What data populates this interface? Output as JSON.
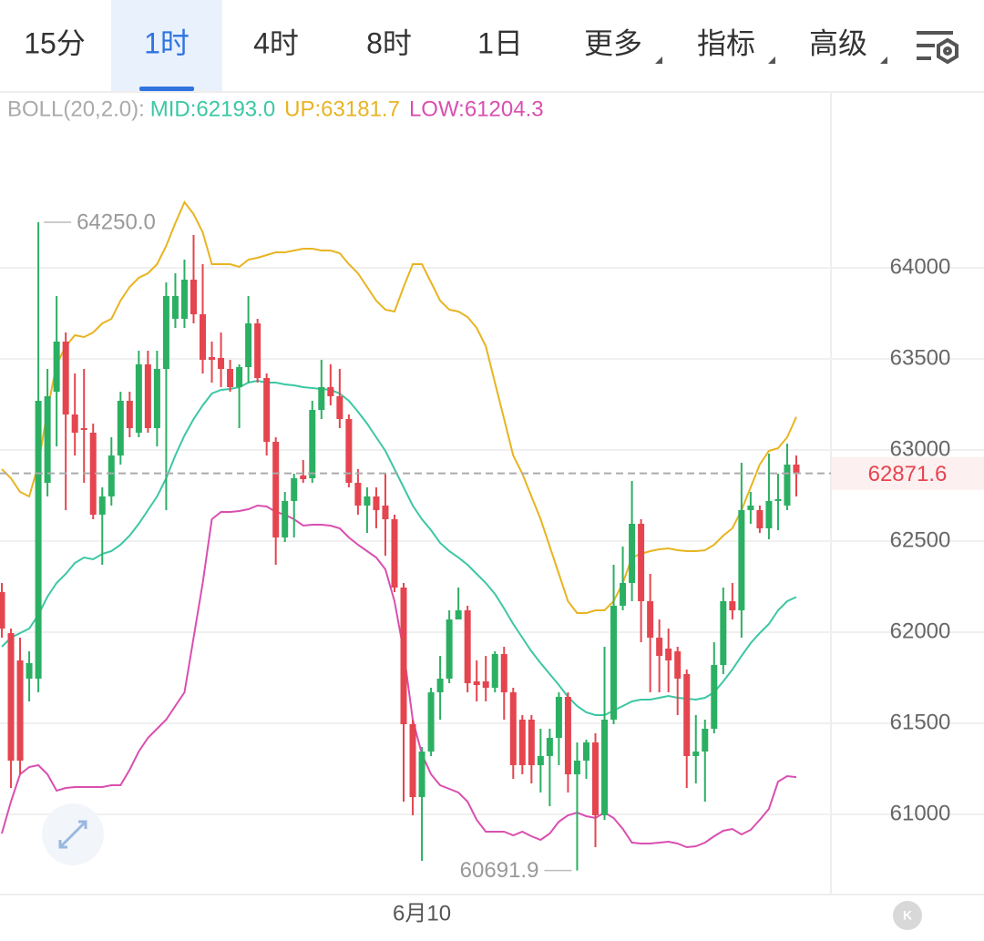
{
  "toolbar": {
    "tabs": [
      "15分",
      "1时",
      "4时",
      "8时",
      "1日",
      "更多",
      "指标",
      "高级"
    ],
    "active": 1
  },
  "chart_data": {
    "type": "candlestick",
    "indicator": "BOLL(20,2.0):",
    "categories": [
      null,
      null,
      null,
      null,
      null,
      null,
      null,
      null,
      null,
      null,
      null,
      null,
      null,
      null,
      null,
      null,
      null,
      null,
      null,
      null,
      null,
      null,
      null,
      null,
      null,
      null,
      null,
      null,
      null,
      null,
      null,
      null,
      null,
      null,
      null,
      null,
      null,
      null,
      null,
      null,
      null,
      null,
      null,
      null,
      null,
      null,
      "6月10",
      null,
      null,
      null,
      null,
      null,
      null,
      null,
      null,
      null,
      null,
      null,
      null,
      null,
      null,
      null,
      null,
      null,
      null,
      null,
      null,
      null,
      null,
      null,
      null,
      null,
      null,
      null,
      null,
      null,
      null,
      null,
      null,
      null,
      null,
      null,
      null,
      null,
      null,
      null,
      null,
      null
    ],
    "open": [
      62220,
      61995,
      61845,
      61745,
      61745,
      62820,
      63320,
      63595,
      63195,
      63120,
      63095,
      62645,
      62745,
      62970,
      63270,
      63095,
      63470,
      63120,
      63445,
      63720,
      63720,
      63935,
      63745,
      63510,
      63505,
      63445,
      63345,
      63455,
      63695,
      63395,
      63045,
      62520,
      62720,
      62860,
      62845,
      63220,
      63345,
      63295,
      63170,
      62820,
      62695,
      62745,
      62695,
      62620,
      62245,
      61495,
      61095,
      61345,
      61670,
      61745,
      62070,
      62120,
      61730,
      61730,
      61695,
      61880,
      61670,
      61520,
      61520,
      61270,
      61320,
      61420,
      61645,
      61220,
      61295,
      61395,
      60995,
      61520,
      62145,
      62270,
      62595,
      62170,
      61970,
      61910,
      61895,
      61770,
      61320,
      61345,
      61470,
      61820,
      62170,
      62120,
      62670,
      62670,
      62570,
      62720,
      62695,
      62920
    ],
    "high": [
      62270,
      62020,
      61970,
      61895,
      64250,
      63445,
      63845,
      63645,
      63420,
      63445,
      63145,
      62795,
      63070,
      63320,
      63320,
      63545,
      63545,
      63545,
      63920,
      63970,
      64045,
      64180,
      64020,
      63595,
      63645,
      63495,
      63470,
      63845,
      63720,
      63420,
      63070,
      62770,
      62870,
      62945,
      63270,
      63495,
      63470,
      63445,
      63195,
      62895,
      62795,
      62795,
      62870,
      62645,
      62270,
      61520,
      61370,
      61695,
      61870,
      62120,
      62245,
      62145,
      61845,
      61870,
      61895,
      61920,
      61695,
      61545,
      61545,
      61470,
      61470,
      61670,
      61670,
      61395,
      61410,
      61445,
      61920,
      62370,
      62470,
      62830,
      62620,
      62320,
      62070,
      62020,
      61920,
      61795,
      61545,
      61520,
      61945,
      62245,
      62270,
      62930,
      62770,
      62695,
      62980,
      62870,
      63035,
      62970
    ],
    "low": [
      61970,
      61145,
      61220,
      61620,
      61670,
      62745,
      63020,
      62670,
      62970,
      62820,
      62620,
      62370,
      62695,
      62920,
      63070,
      63070,
      63095,
      63020,
      62670,
      63670,
      63670,
      63695,
      63420,
      63370,
      63345,
      63320,
      63120,
      63370,
      63370,
      62970,
      62370,
      62495,
      62520,
      62820,
      62820,
      63170,
      63245,
      63120,
      62795,
      62645,
      62545,
      62570,
      62420,
      62220,
      61070,
      60995,
      60745,
      61320,
      61520,
      61720,
      62070,
      61670,
      61620,
      61620,
      61670,
      61520,
      61195,
      61220,
      61170,
      61120,
      61045,
      61270,
      61120,
      60691.9,
      61195,
      60820,
      60970,
      61495,
      62120,
      62170,
      61945,
      61670,
      61670,
      61670,
      61545,
      61145,
      61170,
      61070,
      61445,
      61770,
      62070,
      61970,
      62595,
      62545,
      62510,
      62560,
      62670,
      62745
    ],
    "close": [
      62020,
      61295,
      61295,
      61830,
      63270,
      63295,
      63595,
      63195,
      63095,
      63110,
      62645,
      62745,
      62970,
      63270,
      63120,
      63470,
      63120,
      63445,
      63845,
      63845,
      63935,
      63745,
      63495,
      63495,
      63445,
      63345,
      63455,
      63695,
      63395,
      63045,
      62520,
      62720,
      62845,
      62840,
      63220,
      63345,
      63295,
      63170,
      62820,
      62695,
      62745,
      62670,
      62620,
      62245,
      61495,
      61095,
      61345,
      61670,
      61745,
      62070,
      62120,
      61720,
      61710,
      61695,
      61880,
      61670,
      61270,
      61270,
      61270,
      61320,
      61420,
      61645,
      61220,
      61295,
      61395,
      60995,
      61520,
      62145,
      62270,
      62595,
      62170,
      61970,
      61870,
      61845,
      61745,
      61320,
      61345,
      61470,
      61820,
      62170,
      62120,
      62670,
      62695,
      62570,
      62720,
      62730,
      62920,
      62871.6
    ],
    "up_color": "#2bb063",
    "down_color": "#e5454f",
    "series": [
      {
        "name": "MID:62193.0",
        "color": "#3cc7a4",
        "values": [
          61920,
          61970,
          61995,
          62020,
          62095,
          62195,
          62270,
          62320,
          62380,
          62410,
          62400,
          62430,
          62445,
          62480,
          62530,
          62595,
          62670,
          62745,
          62845,
          62970,
          63080,
          63170,
          63245,
          63310,
          63330,
          63335,
          63345,
          63370,
          63380,
          63370,
          63370,
          63360,
          63355,
          63345,
          63340,
          63335,
          63330,
          63310,
          63270,
          63210,
          63145,
          63070,
          62995,
          62895,
          62795,
          62695,
          62620,
          62560,
          62490,
          62445,
          62410,
          62370,
          62320,
          62270,
          62210,
          62130,
          62045,
          61970,
          61895,
          61830,
          61770,
          61710,
          61645,
          61595,
          61560,
          61545,
          61545,
          61570,
          61595,
          61620,
          61630,
          61630,
          61640,
          61650,
          61640,
          61635,
          61630,
          61640,
          61670,
          61730,
          61795,
          61870,
          61940,
          61995,
          62045,
          62120,
          62170,
          62193
        ]
      },
      {
        "name": "UP:63181.7",
        "color": "#e8b422",
        "values": [
          62895,
          62845,
          62770,
          62745,
          62920,
          63220,
          63470,
          63570,
          63630,
          63620,
          63645,
          63695,
          63720,
          63820,
          63895,
          63945,
          63970,
          64020,
          64120,
          64245,
          64360,
          64295,
          64195,
          64020,
          64020,
          64020,
          64005,
          64045,
          64055,
          64070,
          64085,
          64085,
          64095,
          64105,
          64105,
          64095,
          64095,
          64080,
          64020,
          63970,
          63895,
          63820,
          63770,
          63760,
          63895,
          64020,
          64020,
          63920,
          63820,
          63770,
          63760,
          63730,
          63670,
          63570,
          63370,
          63170,
          62970,
          62870,
          62745,
          62620,
          62470,
          62320,
          62170,
          62105,
          62105,
          62120,
          62120,
          62170,
          62270,
          62410,
          62430,
          62445,
          62455,
          62460,
          62450,
          62445,
          62445,
          62450,
          62480,
          62530,
          62570,
          62670,
          62795,
          62920,
          62995,
          63010,
          63070,
          63181.7
        ]
      },
      {
        "name": "LOW:61204.3",
        "color": "#d94fb0",
        "values": [
          60895,
          61070,
          61220,
          61260,
          61270,
          61220,
          61130,
          61145,
          61150,
          61150,
          61150,
          61150,
          61160,
          61160,
          61245,
          61345,
          61420,
          61470,
          61520,
          61595,
          61670,
          61970,
          62270,
          62620,
          62660,
          62660,
          62665,
          62675,
          62695,
          62690,
          62660,
          62645,
          62620,
          62585,
          62590,
          62590,
          62585,
          62570,
          62520,
          62480,
          62445,
          62410,
          62345,
          62170,
          61895,
          61520,
          61330,
          61220,
          61160,
          61140,
          61120,
          61070,
          60970,
          60905,
          60905,
          60905,
          60885,
          60905,
          60880,
          60860,
          60895,
          60960,
          60995,
          61010,
          60990,
          60980,
          61010,
          60980,
          60920,
          60845,
          60840,
          60840,
          60845,
          60850,
          60840,
          60820,
          60825,
          60845,
          60880,
          60910,
          60920,
          60890,
          60915,
          60970,
          61030,
          61180,
          61210,
          61204.3
        ]
      }
    ],
    "ylim": [
      60560,
      64970
    ],
    "yticks": [
      61000,
      61500,
      62000,
      62500,
      63000,
      63500,
      64000
    ],
    "grid": true,
    "last_price": 62871.6,
    "annotations": [
      {
        "value": 64250,
        "label": "64250.0"
      },
      {
        "value": 60691.9,
        "label": "60691.9"
      }
    ]
  }
}
